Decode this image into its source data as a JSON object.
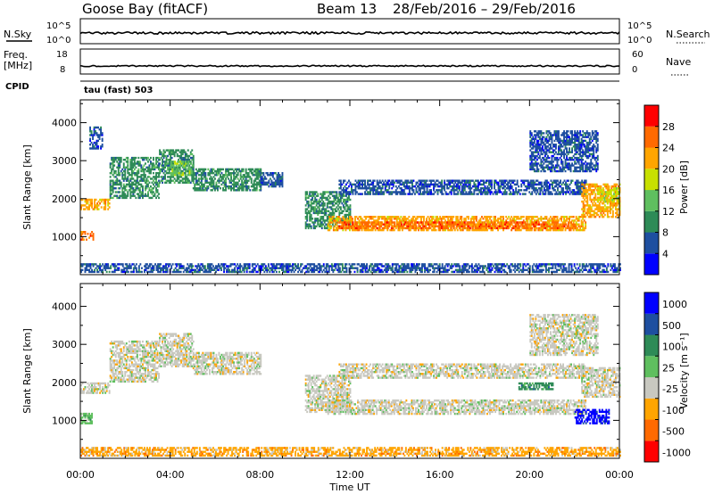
{
  "header": {
    "station": "Goose Bay (fitACF)",
    "beam": "Beam 13",
    "date_range": "28/Feb/2016 – 29/Feb/2016"
  },
  "status_panels": {
    "nsky_label": "N.Sky",
    "nsky_ticks": [
      "10^5",
      "10^0"
    ],
    "nsearch_label": "N.Search",
    "nsearch_ticks": [
      "10^5",
      "10^0"
    ],
    "freq_label": "Freq.",
    "freq_unit": "[MHz]",
    "freq_ticks": [
      "18",
      "8"
    ],
    "nave_label": "Nave",
    "nave_ticks": [
      "60",
      "0"
    ],
    "cpid_label": "CPID",
    "cpid_value": "tau (fast) 503"
  },
  "colors": {
    "power": [
      "#0000ff",
      "#1e4fa0",
      "#2e8b57",
      "#5fbf5f",
      "#c8e000",
      "#ffa500",
      "#ff6a00",
      "#ff0000"
    ],
    "velocity": [
      "#0000ff",
      "#1e4fa0",
      "#2e8b57",
      "#5fbf5f",
      "#c8c8c0",
      "#ffa500",
      "#ff6a00",
      "#ff0000"
    ],
    "ground_scatter": "#c8c8c0"
  },
  "chart_data": [
    {
      "type": "heatmap",
      "name": "power",
      "ylabel": "Slant Range [km]",
      "y_ticks": [
        1000,
        2000,
        3000,
        4000
      ],
      "ylim": [
        0,
        4600
      ],
      "x_ticks": [
        "00:00",
        "04:00",
        "08:00",
        "12:00",
        "16:00",
        "20:00",
        "00:00"
      ],
      "xlim_hours": [
        0,
        24
      ],
      "colorbar_label": "Power [dB]",
      "colorbar_ticks": [
        "4",
        "8",
        "12",
        "16",
        "20",
        "24",
        "28"
      ],
      "bands": [
        {
          "t": [
            0.0,
            1.3
          ],
          "r": [
            1700,
            2000
          ],
          "level": 5
        },
        {
          "t": [
            0.0,
            0.6
          ],
          "r": [
            900,
            1150
          ],
          "level": 6
        },
        {
          "t": [
            0.4,
            1.0
          ],
          "r": [
            3300,
            3900
          ],
          "level": 1
        },
        {
          "t": [
            1.3,
            3.5
          ],
          "r": [
            2000,
            3100
          ],
          "level": 2
        },
        {
          "t": [
            3.5,
            5.0
          ],
          "r": [
            2400,
            3300
          ],
          "level": 2
        },
        {
          "t": [
            4.0,
            5.0
          ],
          "r": [
            2600,
            3000
          ],
          "level": 3
        },
        {
          "t": [
            5.0,
            8.0
          ],
          "r": [
            2200,
            2800
          ],
          "level": 2
        },
        {
          "t": [
            8.0,
            9.0
          ],
          "r": [
            2300,
            2700
          ],
          "level": 1
        },
        {
          "t": [
            10.0,
            12.0
          ],
          "r": [
            1200,
            2200
          ],
          "level": 2
        },
        {
          "t": [
            11.0,
            22.5
          ],
          "r": [
            1150,
            1550
          ],
          "level": 5
        },
        {
          "t": [
            11.5,
            22.0
          ],
          "r": [
            1200,
            1400
          ],
          "level": 6
        },
        {
          "t": [
            11.5,
            22.5
          ],
          "r": [
            2100,
            2500
          ],
          "level": 1
        },
        {
          "t": [
            20.0,
            23.0
          ],
          "r": [
            2700,
            3800
          ],
          "level": 1
        },
        {
          "t": [
            22.3,
            24.0
          ],
          "r": [
            1500,
            2400
          ],
          "level": 5
        },
        {
          "t": [
            23.0,
            24.0
          ],
          "r": [
            1900,
            2300
          ],
          "level": 4
        },
        {
          "t": [
            0.0,
            24.0
          ],
          "r": [
            50,
            300
          ],
          "level": 1
        }
      ]
    },
    {
      "type": "heatmap",
      "name": "velocity",
      "ylabel": "Slant Range [km]",
      "y_ticks": [
        1000,
        2000,
        3000,
        4000
      ],
      "ylim": [
        0,
        4600
      ],
      "x_ticks": [
        "00:00",
        "04:00",
        "08:00",
        "12:00",
        "16:00",
        "20:00",
        "00:00"
      ],
      "xlim_hours": [
        0,
        24
      ],
      "xlabel": "Time UT",
      "colorbar_label": "Velocity [m s⁻¹]",
      "colorbar_ticks": [
        "1000",
        "500",
        "100",
        "25",
        "-25",
        "-100",
        "-500",
        "-1000"
      ],
      "bands": [
        {
          "t": [
            0.0,
            1.3
          ],
          "r": [
            1700,
            2000
          ],
          "level": 4
        },
        {
          "t": [
            1.3,
            3.5
          ],
          "r": [
            2000,
            3100
          ],
          "level": 4
        },
        {
          "t": [
            3.5,
            5.0
          ],
          "r": [
            2400,
            3300
          ],
          "level": 4
        },
        {
          "t": [
            5.0,
            8.0
          ],
          "r": [
            2200,
            2800
          ],
          "level": 4
        },
        {
          "t": [
            10.0,
            12.0
          ],
          "r": [
            1200,
            2200
          ],
          "level": 4
        },
        {
          "t": [
            11.0,
            22.5
          ],
          "r": [
            1150,
            1550
          ],
          "level": 4
        },
        {
          "t": [
            11.5,
            22.5
          ],
          "r": [
            2100,
            2500
          ],
          "level": 4
        },
        {
          "t": [
            19.5,
            21.0
          ],
          "r": [
            1800,
            2000
          ],
          "level": 2
        },
        {
          "t": [
            22.0,
            23.5
          ],
          "r": [
            900,
            1300
          ],
          "level": 0
        },
        {
          "t": [
            0.0,
            0.5
          ],
          "r": [
            900,
            1200
          ],
          "level": 3
        },
        {
          "t": [
            20.0,
            23.0
          ],
          "r": [
            2700,
            3800
          ],
          "level": 4
        },
        {
          "t": [
            22.3,
            24.0
          ],
          "r": [
            1600,
            2400
          ],
          "level": 4
        },
        {
          "t": [
            0.0,
            24.0
          ],
          "r": [
            50,
            300
          ],
          "level": 5
        }
      ]
    }
  ]
}
